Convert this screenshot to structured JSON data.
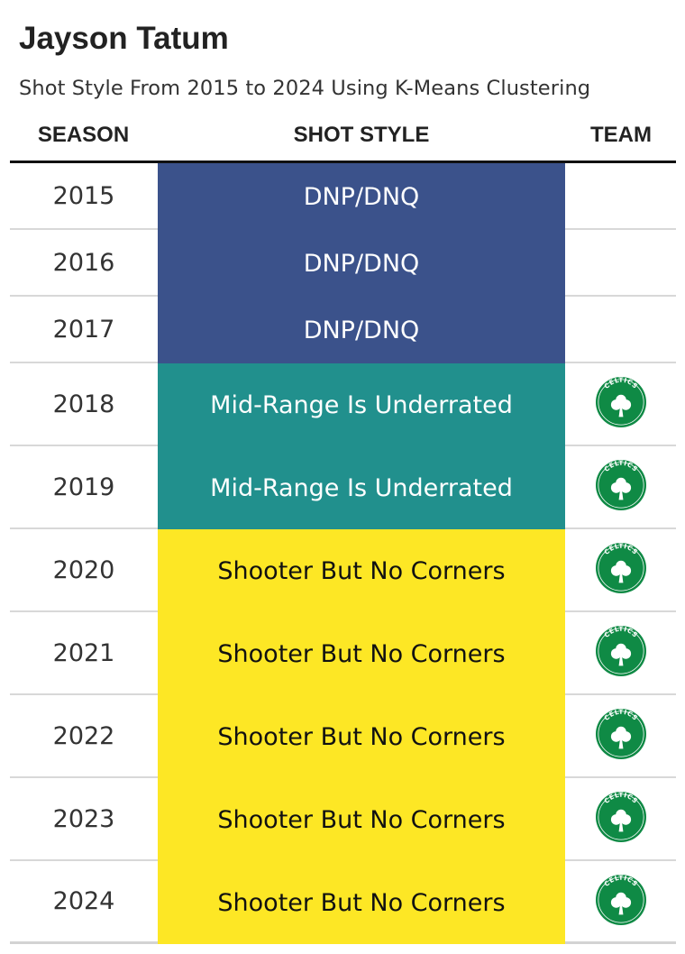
{
  "title": "Jayson Tatum",
  "subtitle": "Shot Style From 2015 to 2024 Using K-Means Clustering",
  "headers": {
    "season": "SEASON",
    "shot_style": "SHOT STYLE",
    "team": "TEAM"
  },
  "colors": {
    "DNP/DNQ": "#3b528b",
    "Mid-Range Is Underrated": "#21908d",
    "Shooter But No Corners": "#fde725",
    "logo_green": "#0f8a45"
  },
  "chart_data": {
    "type": "table",
    "title": "Jayson Tatum",
    "subtitle": "Shot Style From 2015 to 2024 Using K-Means Clustering",
    "columns": [
      "SEASON",
      "SHOT STYLE",
      "TEAM"
    ],
    "rows": [
      {
        "season": "2015",
        "shot_style": "DNP/DNQ",
        "team_logo": null
      },
      {
        "season": "2016",
        "shot_style": "DNP/DNQ",
        "team_logo": null
      },
      {
        "season": "2017",
        "shot_style": "DNP/DNQ",
        "team_logo": null
      },
      {
        "season": "2018",
        "shot_style": "Mid-Range Is Underrated",
        "team_logo": "celtics-logo-icon"
      },
      {
        "season": "2019",
        "shot_style": "Mid-Range Is Underrated",
        "team_logo": "celtics-logo-icon"
      },
      {
        "season": "2020",
        "shot_style": "Shooter But No Corners",
        "team_logo": "celtics-logo-icon"
      },
      {
        "season": "2021",
        "shot_style": "Shooter But No Corners",
        "team_logo": "celtics-logo-icon"
      },
      {
        "season": "2022",
        "shot_style": "Shooter But No Corners",
        "team_logo": "celtics-logo-icon"
      },
      {
        "season": "2023",
        "shot_style": "Shooter But No Corners",
        "team_logo": "celtics-logo-icon"
      },
      {
        "season": "2024",
        "shot_style": "Shooter But No Corners",
        "team_logo": "celtics-logo-icon"
      }
    ]
  }
}
